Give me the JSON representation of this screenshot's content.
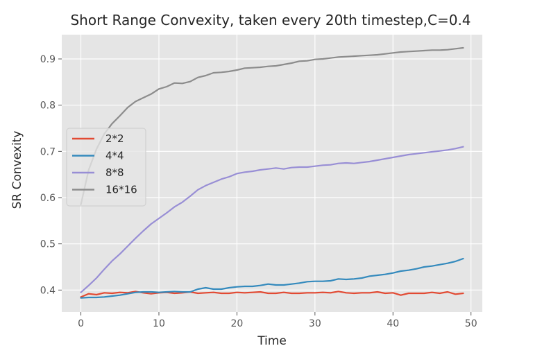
{
  "chart_data": {
    "type": "line",
    "title": "Short Range Convexity, taken every 20th timestep,C=0.4",
    "xlabel": "Time",
    "ylabel": "SR Convexity",
    "xlim": [
      -2.45,
      51.45
    ],
    "ylim": [
      0.3525,
      0.9525
    ],
    "xticks": [
      0,
      10,
      20,
      30,
      40,
      50
    ],
    "yticks": [
      0.4,
      0.5,
      0.6,
      0.7,
      0.8,
      0.9
    ],
    "grid": true,
    "legend_position": "center-left",
    "x": [
      0,
      1,
      2,
      3,
      4,
      5,
      6,
      7,
      8,
      9,
      10,
      11,
      12,
      13,
      14,
      15,
      16,
      17,
      18,
      19,
      20,
      21,
      22,
      23,
      24,
      25,
      26,
      27,
      28,
      29,
      30,
      31,
      32,
      33,
      34,
      35,
      36,
      37,
      38,
      39,
      40,
      41,
      42,
      43,
      44,
      45,
      46,
      47,
      48,
      49
    ],
    "series": [
      {
        "name": "2*2",
        "color": "#e24a33",
        "values": [
          0.385,
          0.392,
          0.39,
          0.394,
          0.393,
          0.395,
          0.394,
          0.397,
          0.394,
          0.392,
          0.394,
          0.395,
          0.393,
          0.394,
          0.396,
          0.393,
          0.394,
          0.395,
          0.393,
          0.393,
          0.395,
          0.394,
          0.395,
          0.396,
          0.393,
          0.393,
          0.395,
          0.393,
          0.393,
          0.394,
          0.394,
          0.395,
          0.394,
          0.397,
          0.394,
          0.393,
          0.394,
          0.394,
          0.396,
          0.393,
          0.394,
          0.389,
          0.393,
          0.393,
          0.393,
          0.395,
          0.393,
          0.396,
          0.391,
          0.393
        ]
      },
      {
        "name": "4*4",
        "color": "#348abd",
        "values": [
          0.383,
          0.384,
          0.384,
          0.385,
          0.387,
          0.389,
          0.392,
          0.395,
          0.396,
          0.396,
          0.395,
          0.396,
          0.397,
          0.396,
          0.396,
          0.402,
          0.405,
          0.402,
          0.402,
          0.405,
          0.407,
          0.408,
          0.408,
          0.41,
          0.413,
          0.411,
          0.411,
          0.413,
          0.415,
          0.418,
          0.419,
          0.419,
          0.42,
          0.424,
          0.423,
          0.424,
          0.426,
          0.43,
          0.432,
          0.434,
          0.437,
          0.441,
          0.443,
          0.446,
          0.45,
          0.452,
          0.455,
          0.458,
          0.462,
          0.468
        ]
      },
      {
        "name": "8*8",
        "color": "#988ed5",
        "values": [
          0.395,
          0.41,
          0.426,
          0.445,
          0.463,
          0.478,
          0.495,
          0.512,
          0.528,
          0.543,
          0.555,
          0.567,
          0.58,
          0.59,
          0.603,
          0.617,
          0.626,
          0.633,
          0.64,
          0.645,
          0.652,
          0.655,
          0.657,
          0.66,
          0.662,
          0.664,
          0.662,
          0.665,
          0.666,
          0.666,
          0.668,
          0.67,
          0.671,
          0.674,
          0.675,
          0.674,
          0.676,
          0.678,
          0.681,
          0.684,
          0.687,
          0.69,
          0.693,
          0.695,
          0.697,
          0.699,
          0.701,
          0.703,
          0.706,
          0.71
        ]
      },
      {
        "name": "16*16",
        "color": "#8c8c8c",
        "values": [
          0.585,
          0.66,
          0.705,
          0.738,
          0.76,
          0.777,
          0.795,
          0.808,
          0.816,
          0.824,
          0.835,
          0.84,
          0.848,
          0.847,
          0.851,
          0.86,
          0.864,
          0.87,
          0.871,
          0.873,
          0.876,
          0.88,
          0.881,
          0.882,
          0.884,
          0.885,
          0.888,
          0.891,
          0.895,
          0.896,
          0.899,
          0.9,
          0.902,
          0.904,
          0.905,
          0.906,
          0.907,
          0.908,
          0.909,
          0.911,
          0.913,
          0.915,
          0.916,
          0.917,
          0.918,
          0.919,
          0.919,
          0.92,
          0.922,
          0.924
        ]
      }
    ]
  }
}
